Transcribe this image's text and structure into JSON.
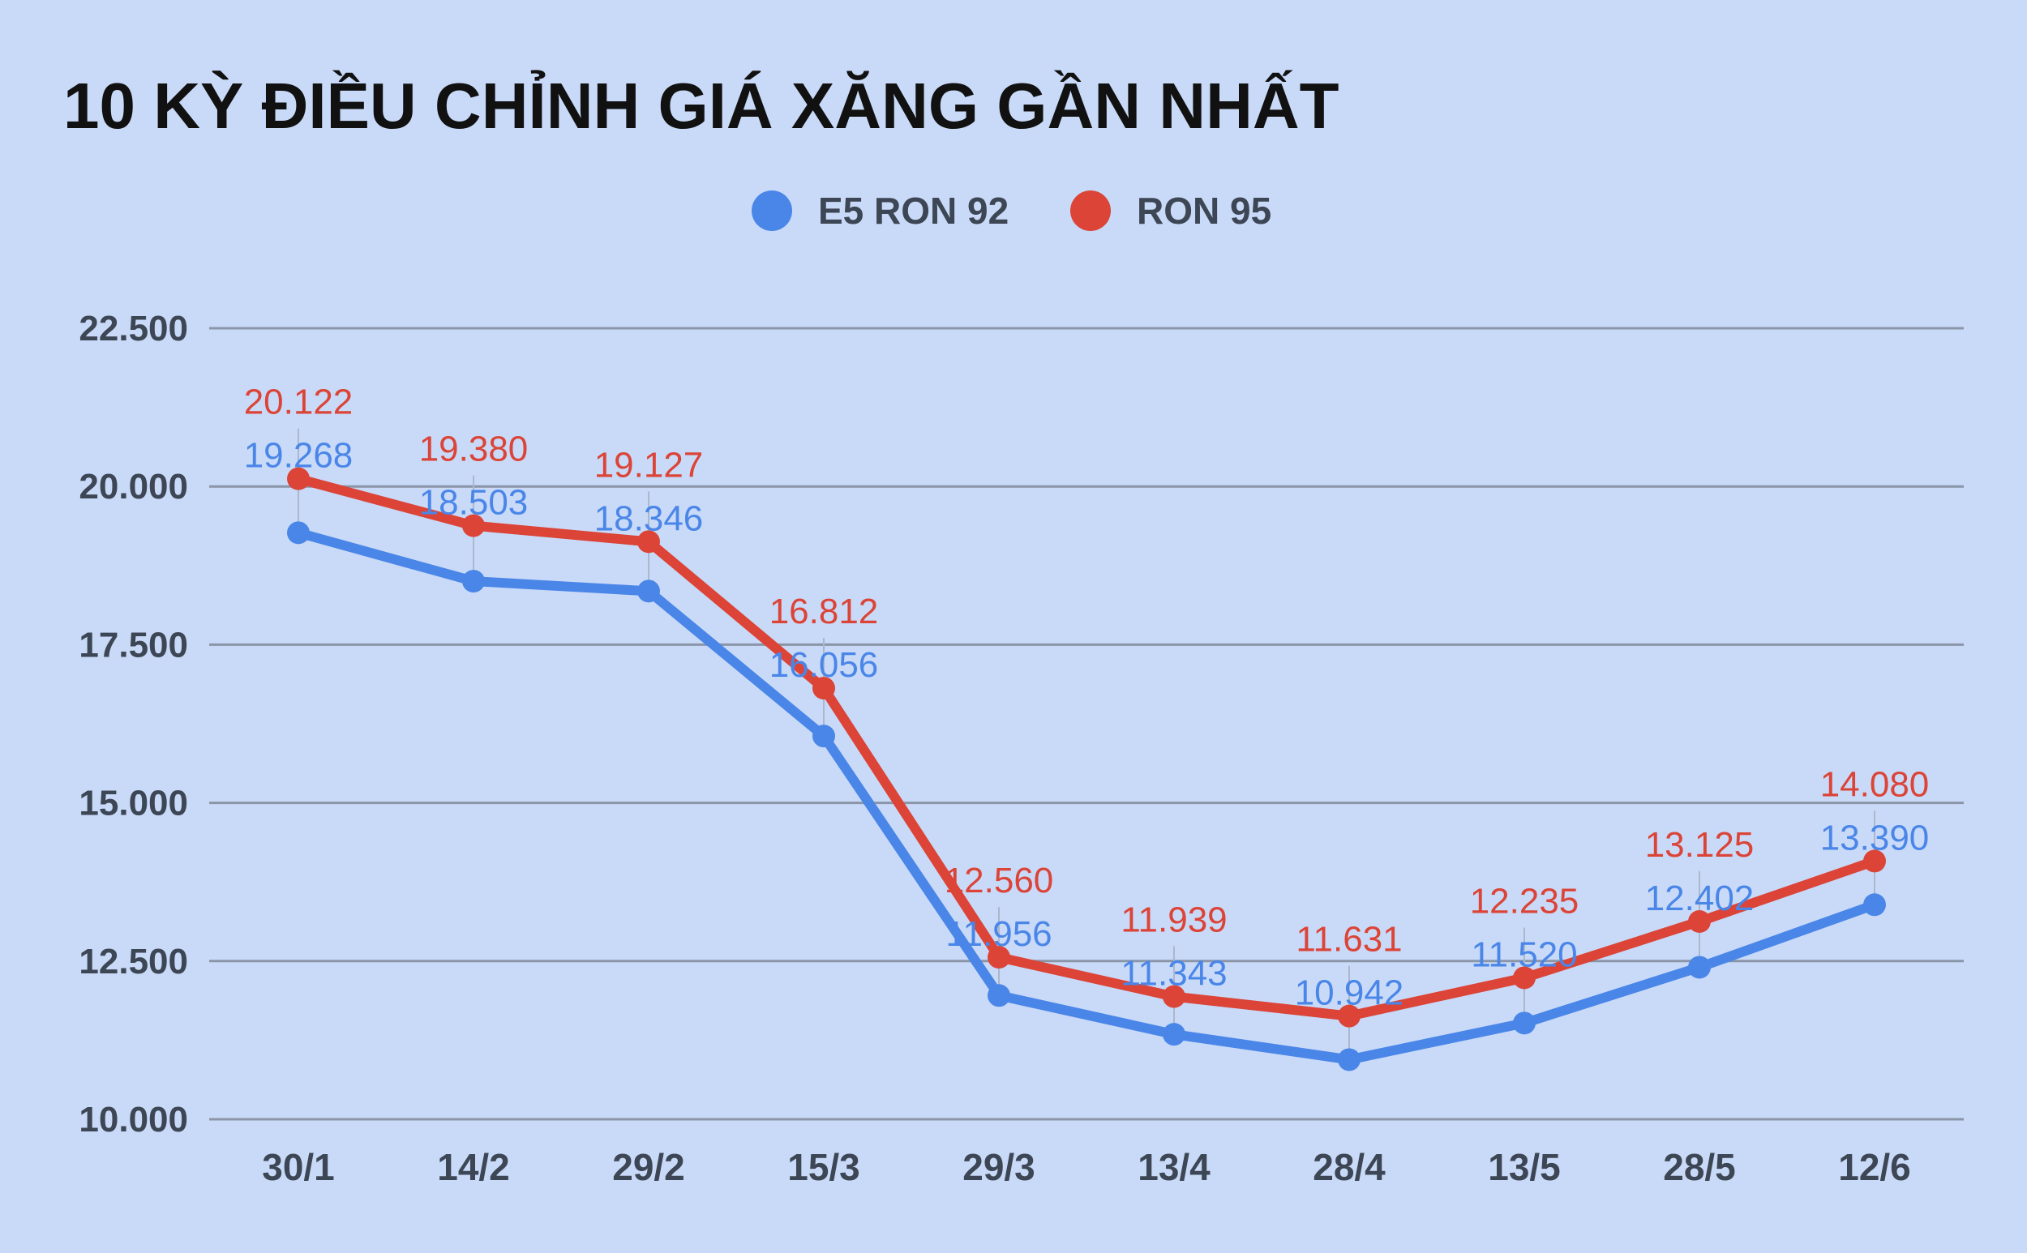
{
  "chart_data": {
    "type": "line",
    "title": "10 KỲ ĐIỀU CHỈNH GIÁ XĂNG GẦN NHẤT",
    "categories": [
      "30/1",
      "14/2",
      "29/2",
      "15/3",
      "29/3",
      "13/4",
      "28/4",
      "13/5",
      "28/5",
      "12/6"
    ],
    "series": [
      {
        "name": "E5 RON 92",
        "color": "#4a86e8",
        "values": [
          19268,
          18503,
          18346,
          16056,
          11956,
          11343,
          10942,
          11520,
          12402,
          13390
        ],
        "labels": [
          "19.268",
          "18.503",
          "18.346",
          "16.056",
          "11.956",
          "11.343",
          "10.942",
          "11.520",
          "12.402",
          "13.390"
        ]
      },
      {
        "name": "RON 95",
        "color": "#db4437",
        "values": [
          20122,
          19380,
          19127,
          16812,
          12560,
          11939,
          11631,
          12235,
          13125,
          14080
        ],
        "labels": [
          "20.122",
          "19.380",
          "19.127",
          "16.812",
          "12.560",
          "11.939",
          "11.631",
          "12.235",
          "13.125",
          "14.080"
        ]
      }
    ],
    "ylim": [
      10000,
      22500
    ],
    "yticks": [
      10000,
      12500,
      15000,
      17500,
      20000,
      22500
    ],
    "ytick_labels": [
      "10.000",
      "12.500",
      "15.000",
      "17.500",
      "20.000",
      "22.500"
    ],
    "grid": true,
    "legend_position": "top-center"
  }
}
